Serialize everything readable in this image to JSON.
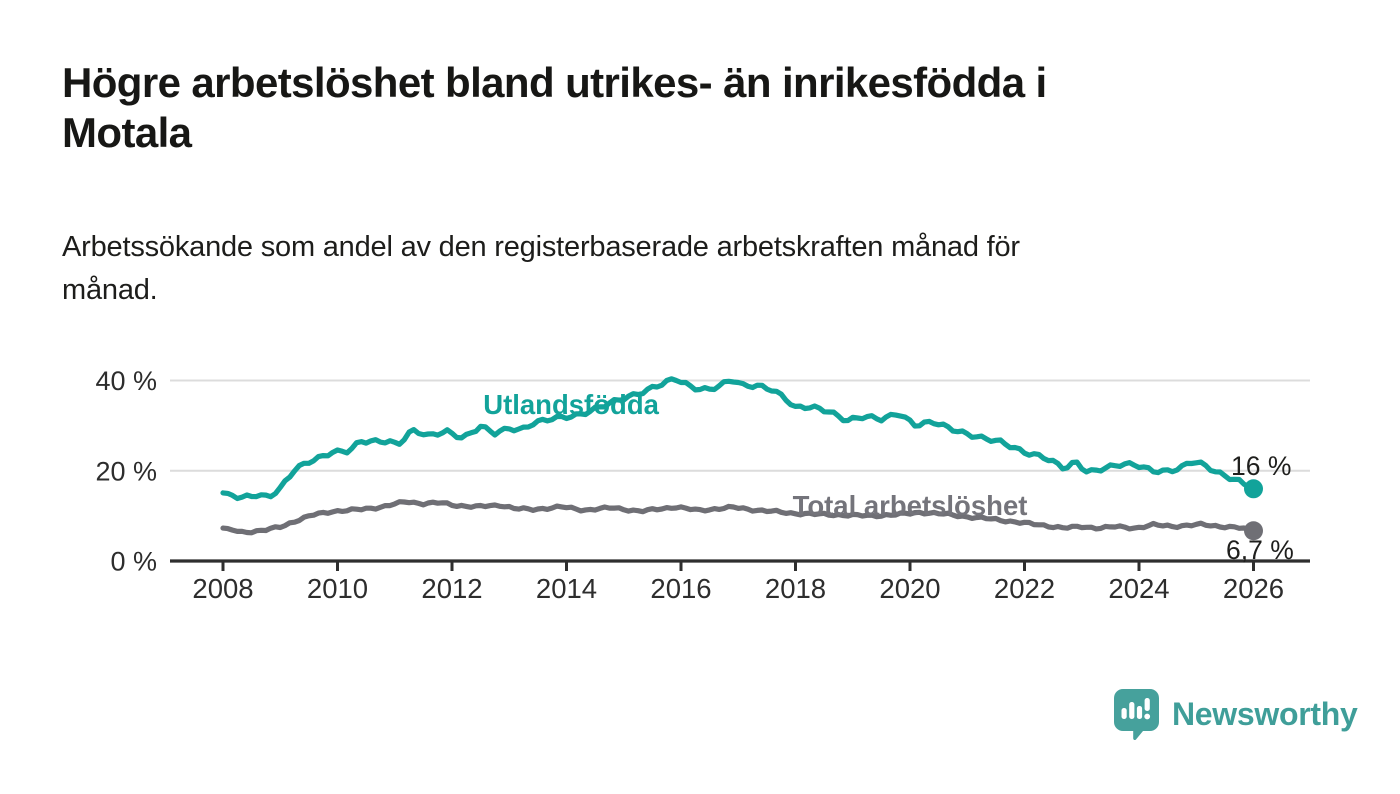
{
  "header": {
    "title_lines": [
      "Högre arbetslöshet bland utrikes- än inrikesfödda i",
      "Motala"
    ],
    "subtitle_lines": [
      "Arbetssökande som andel av den registerbaserade arbetskraften månad för",
      "månad."
    ]
  },
  "chart_data": {
    "type": "line",
    "title": "Högre arbetslöshet bland utrikes- än inrikesfödda i Motala",
    "subtitle": "Arbetssökande som andel av den registerbaserade arbetskraften månad för månad.",
    "unit": "%",
    "x_axis": {
      "ticks": [
        2008,
        2010,
        2012,
        2014,
        2016,
        2018,
        2020,
        2022,
        2024,
        2026
      ],
      "data_range": [
        2008,
        2026
      ]
    },
    "y_axis": {
      "ticks": [
        {
          "value": 0,
          "label": "0 %"
        },
        {
          "value": 20,
          "label": "20 %"
        },
        {
          "value": 40,
          "label": "40 %"
        }
      ],
      "gridlines": [
        20,
        40
      ],
      "range": [
        0,
        44
      ]
    },
    "series": [
      {
        "name": "Utlandsfödda",
        "color": "#12a39a",
        "label_color": "#12a39a",
        "label_pos": {
          "year": 2014.08,
          "value": 32.6
        },
        "end_label": "16 %",
        "end_value": 16.0,
        "points": [
          [
            2008.0,
            15.1
          ],
          [
            2008.3,
            13.9
          ],
          [
            2008.6,
            14.9
          ],
          [
            2008.8,
            14.3
          ],
          [
            2009.0,
            16.0
          ],
          [
            2009.25,
            20.0
          ],
          [
            2009.5,
            22.0
          ],
          [
            2009.9,
            24.3
          ],
          [
            2010.2,
            24.2
          ],
          [
            2010.4,
            26.3
          ],
          [
            2010.9,
            26.8
          ],
          [
            2011.05,
            25.8
          ],
          [
            2011.3,
            28.8
          ],
          [
            2011.6,
            27.6
          ],
          [
            2011.9,
            29.0
          ],
          [
            2012.2,
            27.3
          ],
          [
            2012.5,
            29.6
          ],
          [
            2012.75,
            28.2
          ],
          [
            2013.0,
            29.6
          ],
          [
            2013.2,
            29.2
          ],
          [
            2013.4,
            30.4
          ],
          [
            2013.8,
            31.5
          ],
          [
            2014.2,
            32.5
          ],
          [
            2014.7,
            34.5
          ],
          [
            2015.0,
            36.0
          ],
          [
            2015.5,
            38.5
          ],
          [
            2015.9,
            40.2
          ],
          [
            2016.2,
            38.4
          ],
          [
            2016.5,
            38.2
          ],
          [
            2016.9,
            40.0
          ],
          [
            2017.1,
            38.6
          ],
          [
            2017.35,
            38.9
          ],
          [
            2017.6,
            38.2
          ],
          [
            2017.8,
            36.3
          ],
          [
            2018.0,
            33.8
          ],
          [
            2018.3,
            34.0
          ],
          [
            2018.6,
            33.3
          ],
          [
            2018.9,
            31.2
          ],
          [
            2019.2,
            31.8
          ],
          [
            2019.5,
            31.4
          ],
          [
            2019.8,
            33.0
          ],
          [
            2020.1,
            30.0
          ],
          [
            2020.4,
            30.6
          ],
          [
            2020.7,
            29.5
          ],
          [
            2021.0,
            28.3
          ],
          [
            2021.3,
            27.0
          ],
          [
            2021.6,
            26.2
          ],
          [
            2022.0,
            24.3
          ],
          [
            2022.3,
            23.2
          ],
          [
            2022.5,
            21.8
          ],
          [
            2022.7,
            20.3
          ],
          [
            2022.9,
            22.0
          ],
          [
            2023.1,
            19.9
          ],
          [
            2023.4,
            20.6
          ],
          [
            2023.7,
            21.2
          ],
          [
            2023.95,
            21.3
          ],
          [
            2024.25,
            20.2
          ],
          [
            2024.55,
            19.9
          ],
          [
            2024.75,
            20.6
          ],
          [
            2024.95,
            22.0
          ],
          [
            2025.1,
            21.5
          ],
          [
            2025.3,
            20.3
          ],
          [
            2025.5,
            19.0
          ],
          [
            2025.7,
            17.9
          ],
          [
            2025.85,
            16.8
          ],
          [
            2026.0,
            16.0
          ]
        ]
      },
      {
        "name": "Total arbetslöshet",
        "color": "#6f6f75",
        "label_color": "#74747b",
        "label_pos": {
          "year": 2020.0,
          "value": 10.2
        },
        "end_label": "6,7 %",
        "end_value": 6.7,
        "points": [
          [
            2008.0,
            7.3
          ],
          [
            2008.35,
            6.4
          ],
          [
            2008.7,
            6.7
          ],
          [
            2009.0,
            7.6
          ],
          [
            2009.3,
            9.0
          ],
          [
            2009.6,
            10.3
          ],
          [
            2009.9,
            11.0
          ],
          [
            2010.2,
            11.2
          ],
          [
            2010.5,
            11.6
          ],
          [
            2010.8,
            12.0
          ],
          [
            2011.2,
            13.2
          ],
          [
            2011.5,
            12.7
          ],
          [
            2011.8,
            12.9
          ],
          [
            2012.1,
            12.3
          ],
          [
            2012.4,
            12.0
          ],
          [
            2012.85,
            12.4
          ],
          [
            2013.1,
            11.6
          ],
          [
            2013.4,
            11.4
          ],
          [
            2013.9,
            12.0
          ],
          [
            2014.3,
            11.3
          ],
          [
            2014.8,
            11.8
          ],
          [
            2015.3,
            11.0
          ],
          [
            2015.9,
            12.0
          ],
          [
            2016.3,
            11.2
          ],
          [
            2016.9,
            11.9
          ],
          [
            2017.3,
            11.3
          ],
          [
            2017.6,
            11.0
          ],
          [
            2017.9,
            10.6
          ],
          [
            2018.3,
            10.4
          ],
          [
            2018.8,
            10.2
          ],
          [
            2019.3,
            10.0
          ],
          [
            2019.8,
            10.3
          ],
          [
            2020.2,
            10.8
          ],
          [
            2020.6,
            10.4
          ],
          [
            2021.0,
            9.8
          ],
          [
            2021.5,
            9.2
          ],
          [
            2022.0,
            8.4
          ],
          [
            2022.4,
            7.8
          ],
          [
            2022.7,
            7.3
          ],
          [
            2023.0,
            7.6
          ],
          [
            2023.3,
            7.3
          ],
          [
            2023.6,
            7.6
          ],
          [
            2023.95,
            7.3
          ],
          [
            2024.25,
            8.0
          ],
          [
            2024.6,
            7.7
          ],
          [
            2024.9,
            7.9
          ],
          [
            2025.1,
            8.1
          ],
          [
            2025.4,
            7.7
          ],
          [
            2025.7,
            7.4
          ],
          [
            2025.9,
            7.1
          ],
          [
            2026.0,
            6.7
          ]
        ]
      }
    ],
    "legend_position": "inline-labels",
    "grid": "horizontal-only"
  },
  "footer": {
    "brand": "Newsworthy",
    "brand_color": "#3f9e99",
    "logo_color": "#46a19c"
  }
}
